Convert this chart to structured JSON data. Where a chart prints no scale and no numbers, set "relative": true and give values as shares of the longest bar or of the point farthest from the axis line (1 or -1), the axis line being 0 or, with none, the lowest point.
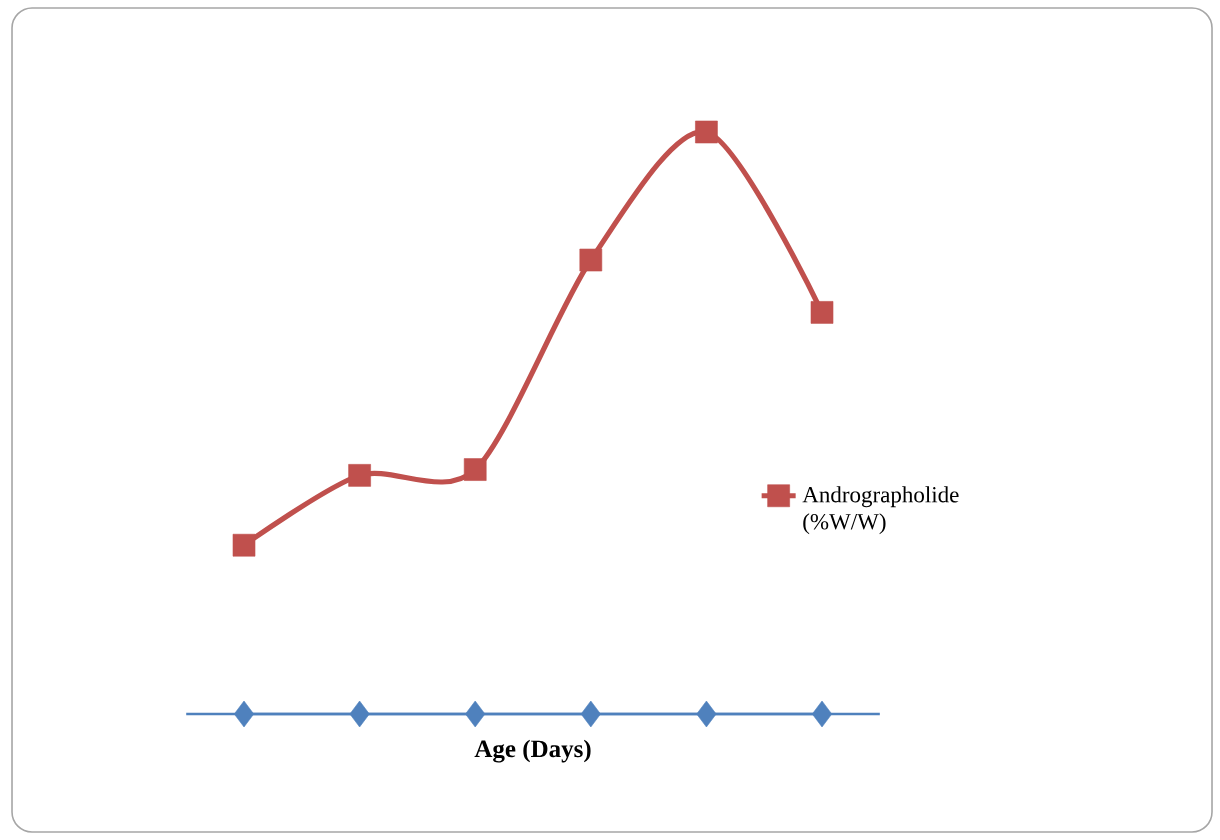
{
  "chart_data": {
    "type": "line",
    "xlabel": "**Age (Days)**",
    "categories": [
      null,
      null,
      null,
      null,
      null,
      null
    ],
    "relative": true,
    "legend": "right",
    "series": [
      {
        "name": "Andrographolide (%W/W)",
        "color": "#c0504d",
        "marker": "square",
        "values": [
          0.29,
          0.41,
          0.42,
          0.78,
          1,
          0.69
        ]
      },
      {
        "color": "#4f81bd",
        "marker": "diamond",
        "values": [
          0,
          0,
          0,
          0,
          0,
          0
        ]
      }
    ]
  }
}
